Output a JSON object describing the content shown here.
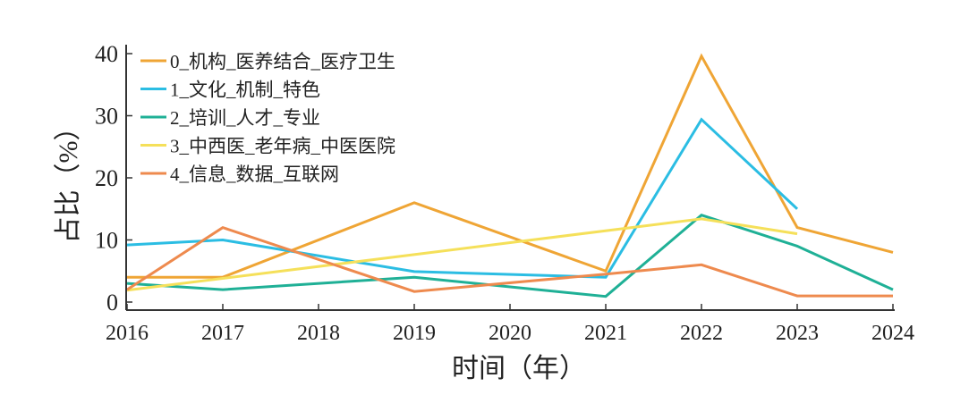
{
  "chart_data": {
    "type": "line",
    "title": "",
    "xlabel": "时间（年）",
    "ylabel": "占比（%）",
    "x": [
      2016,
      2017,
      2018,
      2019,
      2020,
      2021,
      2022,
      2023,
      2024
    ],
    "xticks": [
      "2016",
      "2017",
      "2018",
      "2019",
      "2020",
      "2021",
      "2022",
      "2023",
      "2024"
    ],
    "yticks": [
      "0",
      "10",
      "20",
      "30",
      "40"
    ],
    "ylim": [
      -1,
      41
    ],
    "xlim": [
      2016,
      2024
    ],
    "grid": false,
    "legend_position": "top-left",
    "series": [
      {
        "name": "0_机构_医养结合_医疗卫生",
        "color": "#EFA535",
        "values": [
          4,
          4,
          null,
          16,
          null,
          5,
          39.6,
          12,
          8
        ]
      },
      {
        "name": "1_文化_机制_特色",
        "color": "#2BBDE3",
        "values": [
          9.2,
          10,
          null,
          4.9,
          null,
          4,
          29.4,
          15,
          null
        ]
      },
      {
        "name": "2_培训_人才_专业",
        "color": "#1FB096",
        "values": [
          3,
          2,
          null,
          4,
          null,
          0.9,
          14,
          9,
          2
        ]
      },
      {
        "name": "3_中西医_老年病_中医医院",
        "color": "#F5E05A",
        "values": [
          1.9,
          null,
          null,
          null,
          null,
          null,
          13.4,
          11,
          null
        ]
      },
      {
        "name": "4_信息_数据_互联网",
        "color": "#EE8A4E",
        "values": [
          2,
          12,
          null,
          1.7,
          null,
          4.5,
          6,
          1,
          1
        ]
      }
    ]
  }
}
